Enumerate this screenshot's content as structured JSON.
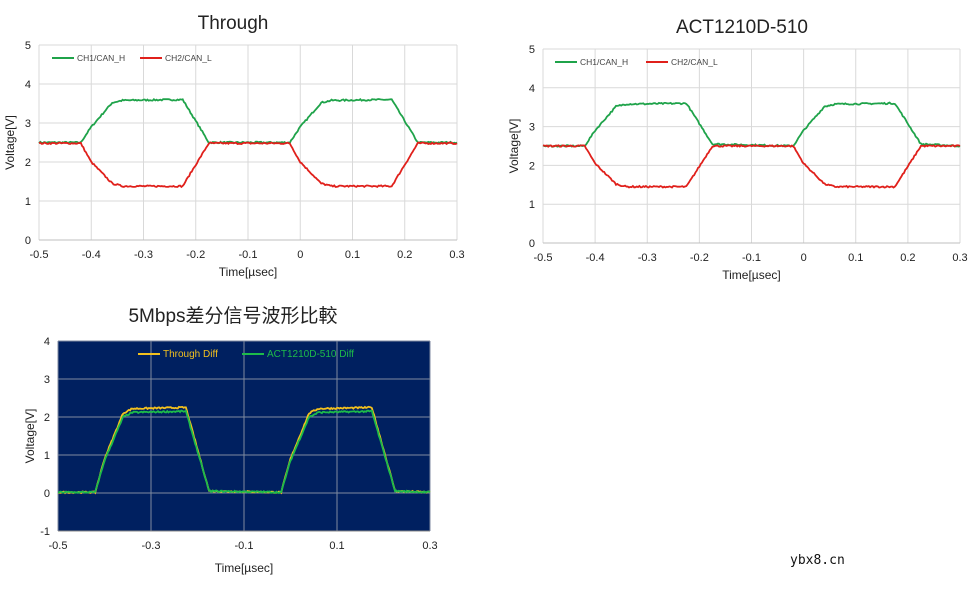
{
  "chart_data": [
    {
      "type": "line",
      "title": "Through",
      "xlabel": "Time[µsec]",
      "ylabel": "Voltage[V]",
      "xlim": [
        -0.5,
        0.3
      ],
      "ylim": [
        0,
        5
      ],
      "xticks": [
        -0.5,
        -0.4,
        -0.3,
        -0.2,
        -0.1,
        0,
        0.1,
        0.2,
        0.3
      ],
      "yticks": [
        0,
        1,
        2,
        3,
        4,
        5
      ],
      "grid": true,
      "legend": "top-left",
      "background": "#ffffff",
      "series": [
        {
          "name": "CH1/CAN_H",
          "color": "#1fa34a",
          "x": [
            -0.5,
            -0.42,
            -0.4,
            -0.36,
            -0.34,
            -0.225,
            -0.175,
            -0.02,
            0.0,
            0.04,
            0.06,
            0.175,
            0.225,
            0.3
          ],
          "y": [
            2.5,
            2.5,
            2.9,
            3.52,
            3.58,
            3.6,
            2.5,
            2.5,
            2.9,
            3.52,
            3.58,
            3.6,
            2.5,
            2.5
          ]
        },
        {
          "name": "CH2/CAN_L",
          "color": "#e0201b",
          "x": [
            -0.5,
            -0.42,
            -0.4,
            -0.36,
            -0.34,
            -0.225,
            -0.175,
            -0.02,
            0.0,
            0.04,
            0.06,
            0.175,
            0.225,
            0.3
          ],
          "y": [
            2.48,
            2.48,
            2.0,
            1.45,
            1.38,
            1.38,
            2.48,
            2.48,
            2.0,
            1.45,
            1.38,
            1.38,
            2.48,
            2.48
          ]
        }
      ]
    },
    {
      "type": "line",
      "title": "ACT1210D-510",
      "xlabel": "Time[µsec]",
      "ylabel": "Voltage[V]",
      "xlim": [
        -0.5,
        0.3
      ],
      "ylim": [
        0,
        5
      ],
      "xticks": [
        -0.5,
        -0.4,
        -0.3,
        -0.2,
        -0.1,
        0,
        0.1,
        0.2,
        0.3
      ],
      "yticks": [
        0,
        1,
        2,
        3,
        4,
        5
      ],
      "grid": true,
      "legend": "top-left",
      "background": "#ffffff",
      "series": [
        {
          "name": "CH1/CAN_H",
          "color": "#1fa34a",
          "x": [
            -0.5,
            -0.42,
            -0.4,
            -0.36,
            -0.34,
            -0.225,
            -0.175,
            -0.02,
            0.0,
            0.04,
            0.06,
            0.175,
            0.225,
            0.3
          ],
          "y": [
            2.5,
            2.5,
            2.9,
            3.52,
            3.58,
            3.6,
            2.55,
            2.5,
            2.9,
            3.52,
            3.58,
            3.6,
            2.55,
            2.5
          ]
        },
        {
          "name": "CH2/CAN_L",
          "color": "#e0201b",
          "x": [
            -0.5,
            -0.42,
            -0.4,
            -0.36,
            -0.34,
            -0.225,
            -0.175,
            -0.02,
            0.0,
            0.04,
            0.06,
            0.175,
            0.225,
            0.3
          ],
          "y": [
            2.5,
            2.5,
            2.05,
            1.52,
            1.45,
            1.45,
            2.5,
            2.5,
            2.05,
            1.52,
            1.45,
            1.45,
            2.5,
            2.5
          ]
        }
      ]
    },
    {
      "type": "line",
      "title": "5Mbps差分信号波形比較",
      "xlabel": "Time[µsec]",
      "ylabel": "Voltage[V]",
      "xlim": [
        -0.5,
        0.3
      ],
      "ylim": [
        -1,
        4
      ],
      "xticks": [
        -0.5,
        -0.3,
        -0.1,
        0.1,
        0.3
      ],
      "yticks": [
        -1,
        0,
        1,
        2,
        3,
        4
      ],
      "grid": true,
      "legend": "top-center",
      "background": "#002060",
      "series": [
        {
          "name": "Through Diff",
          "color": "#f2c01e",
          "x": [
            -0.5,
            -0.42,
            -0.4,
            -0.36,
            -0.34,
            -0.225,
            -0.175,
            -0.02,
            0.0,
            0.04,
            0.06,
            0.175,
            0.225,
            0.3
          ],
          "y": [
            0.02,
            0.02,
            0.9,
            2.1,
            2.22,
            2.25,
            0.05,
            0.02,
            0.9,
            2.1,
            2.22,
            2.25,
            0.05,
            0.02
          ]
        },
        {
          "name": "ACT1210D-510 Diff",
          "color": "#1dbb4a",
          "x": [
            -0.5,
            -0.42,
            -0.4,
            -0.36,
            -0.34,
            -0.225,
            -0.175,
            -0.02,
            0.0,
            0.04,
            0.06,
            0.175,
            0.225,
            0.3
          ],
          "y": [
            0.02,
            0.02,
            0.85,
            2.0,
            2.12,
            2.15,
            0.05,
            0.02,
            0.85,
            2.0,
            2.12,
            2.15,
            0.05,
            0.02
          ]
        }
      ]
    }
  ],
  "watermark": "ybx8.cn"
}
